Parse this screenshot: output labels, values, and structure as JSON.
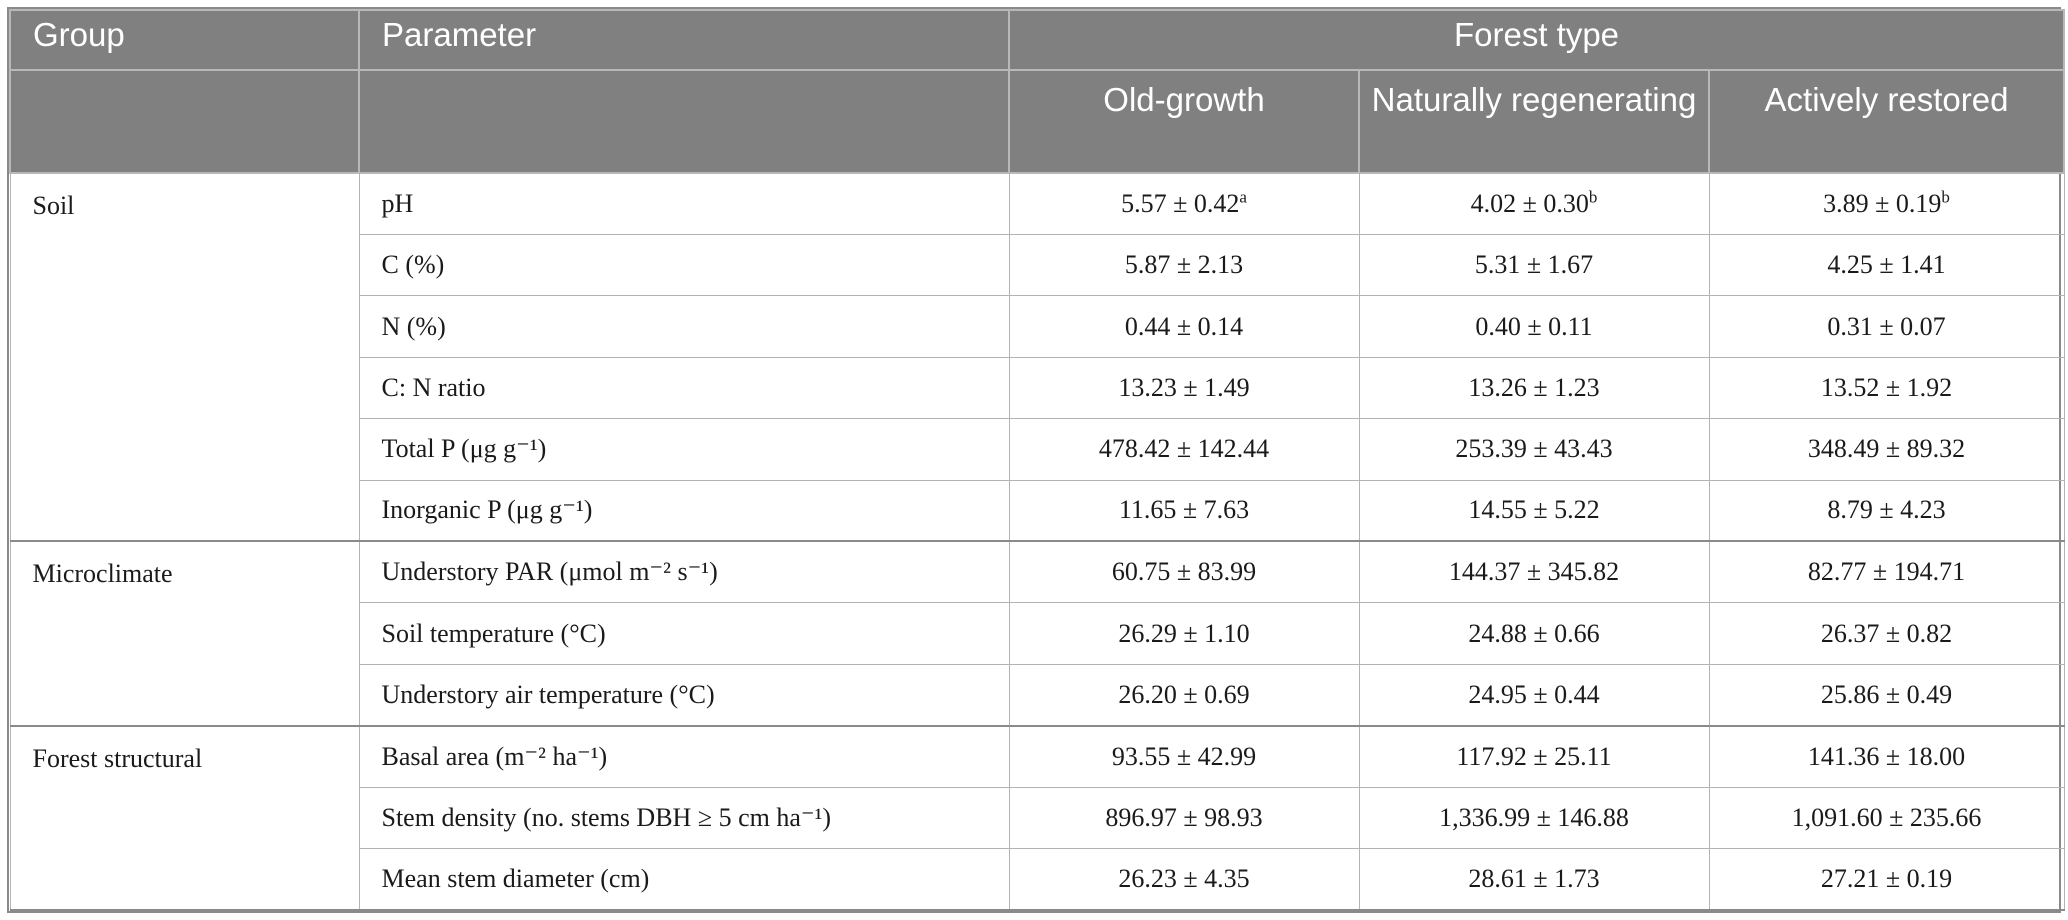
{
  "header": {
    "group": "Group",
    "parameter": "Parameter",
    "forest_type": "Forest type",
    "types": [
      "Old-growth",
      "Naturally regenerating",
      "Actively restored"
    ]
  },
  "groups": [
    {
      "name": "Soil",
      "rows": [
        {
          "param": "pH",
          "values": [
            "5.57 ± 0.42",
            "4.02 ± 0.30",
            "3.89 ± 0.19"
          ],
          "sups": [
            "a",
            "b",
            "b"
          ]
        },
        {
          "param": "C (%)",
          "values": [
            "5.87 ± 2.13",
            "5.31 ± 1.67",
            "4.25 ± 1.41"
          ]
        },
        {
          "param": "N (%)",
          "values": [
            "0.44 ± 0.14",
            "0.40 ± 0.11",
            "0.31 ± 0.07"
          ]
        },
        {
          "param": "C: N ratio",
          "values": [
            "13.23 ± 1.49",
            "13.26 ± 1.23",
            "13.52 ± 1.92"
          ]
        },
        {
          "param": "Total P (μg g⁻¹)",
          "values": [
            "478.42 ± 142.44",
            "253.39 ± 43.43",
            "348.49 ± 89.32"
          ]
        },
        {
          "param": "Inorganic P (μg g⁻¹)",
          "values": [
            "11.65 ± 7.63",
            "14.55 ± 5.22",
            "8.79 ± 4.23"
          ]
        }
      ]
    },
    {
      "name": "Microclimate",
      "rows": [
        {
          "param": "Understory PAR (μmol m⁻² s⁻¹)",
          "values": [
            "60.75 ± 83.99",
            "144.37 ± 345.82",
            "82.77 ± 194.71"
          ]
        },
        {
          "param": "Soil temperature (°C)",
          "values": [
            "26.29 ± 1.10",
            "24.88 ± 0.66",
            "26.37 ± 0.82"
          ]
        },
        {
          "param": "Understory air temperature (°C)",
          "values": [
            "26.20 ± 0.69",
            "24.95 ± 0.44",
            "25.86 ± 0.49"
          ]
        }
      ]
    },
    {
      "name": "Forest structural",
      "rows": [
        {
          "param": "Basal area (m⁻² ha⁻¹)",
          "values": [
            "93.55 ± 42.99",
            "117.92 ± 25.11",
            "141.36 ± 18.00"
          ]
        },
        {
          "param": "Stem density (no. stems DBH ≥ 5 cm ha⁻¹)",
          "values": [
            "896.97 ± 98.93",
            "1,336.99 ± 146.88",
            "1,091.60 ± 235.66"
          ]
        },
        {
          "param": "Mean stem diameter (cm)",
          "values": [
            "26.23 ± 4.35",
            "28.61 ± 1.73",
            "27.21 ± 0.19"
          ]
        }
      ]
    }
  ]
}
